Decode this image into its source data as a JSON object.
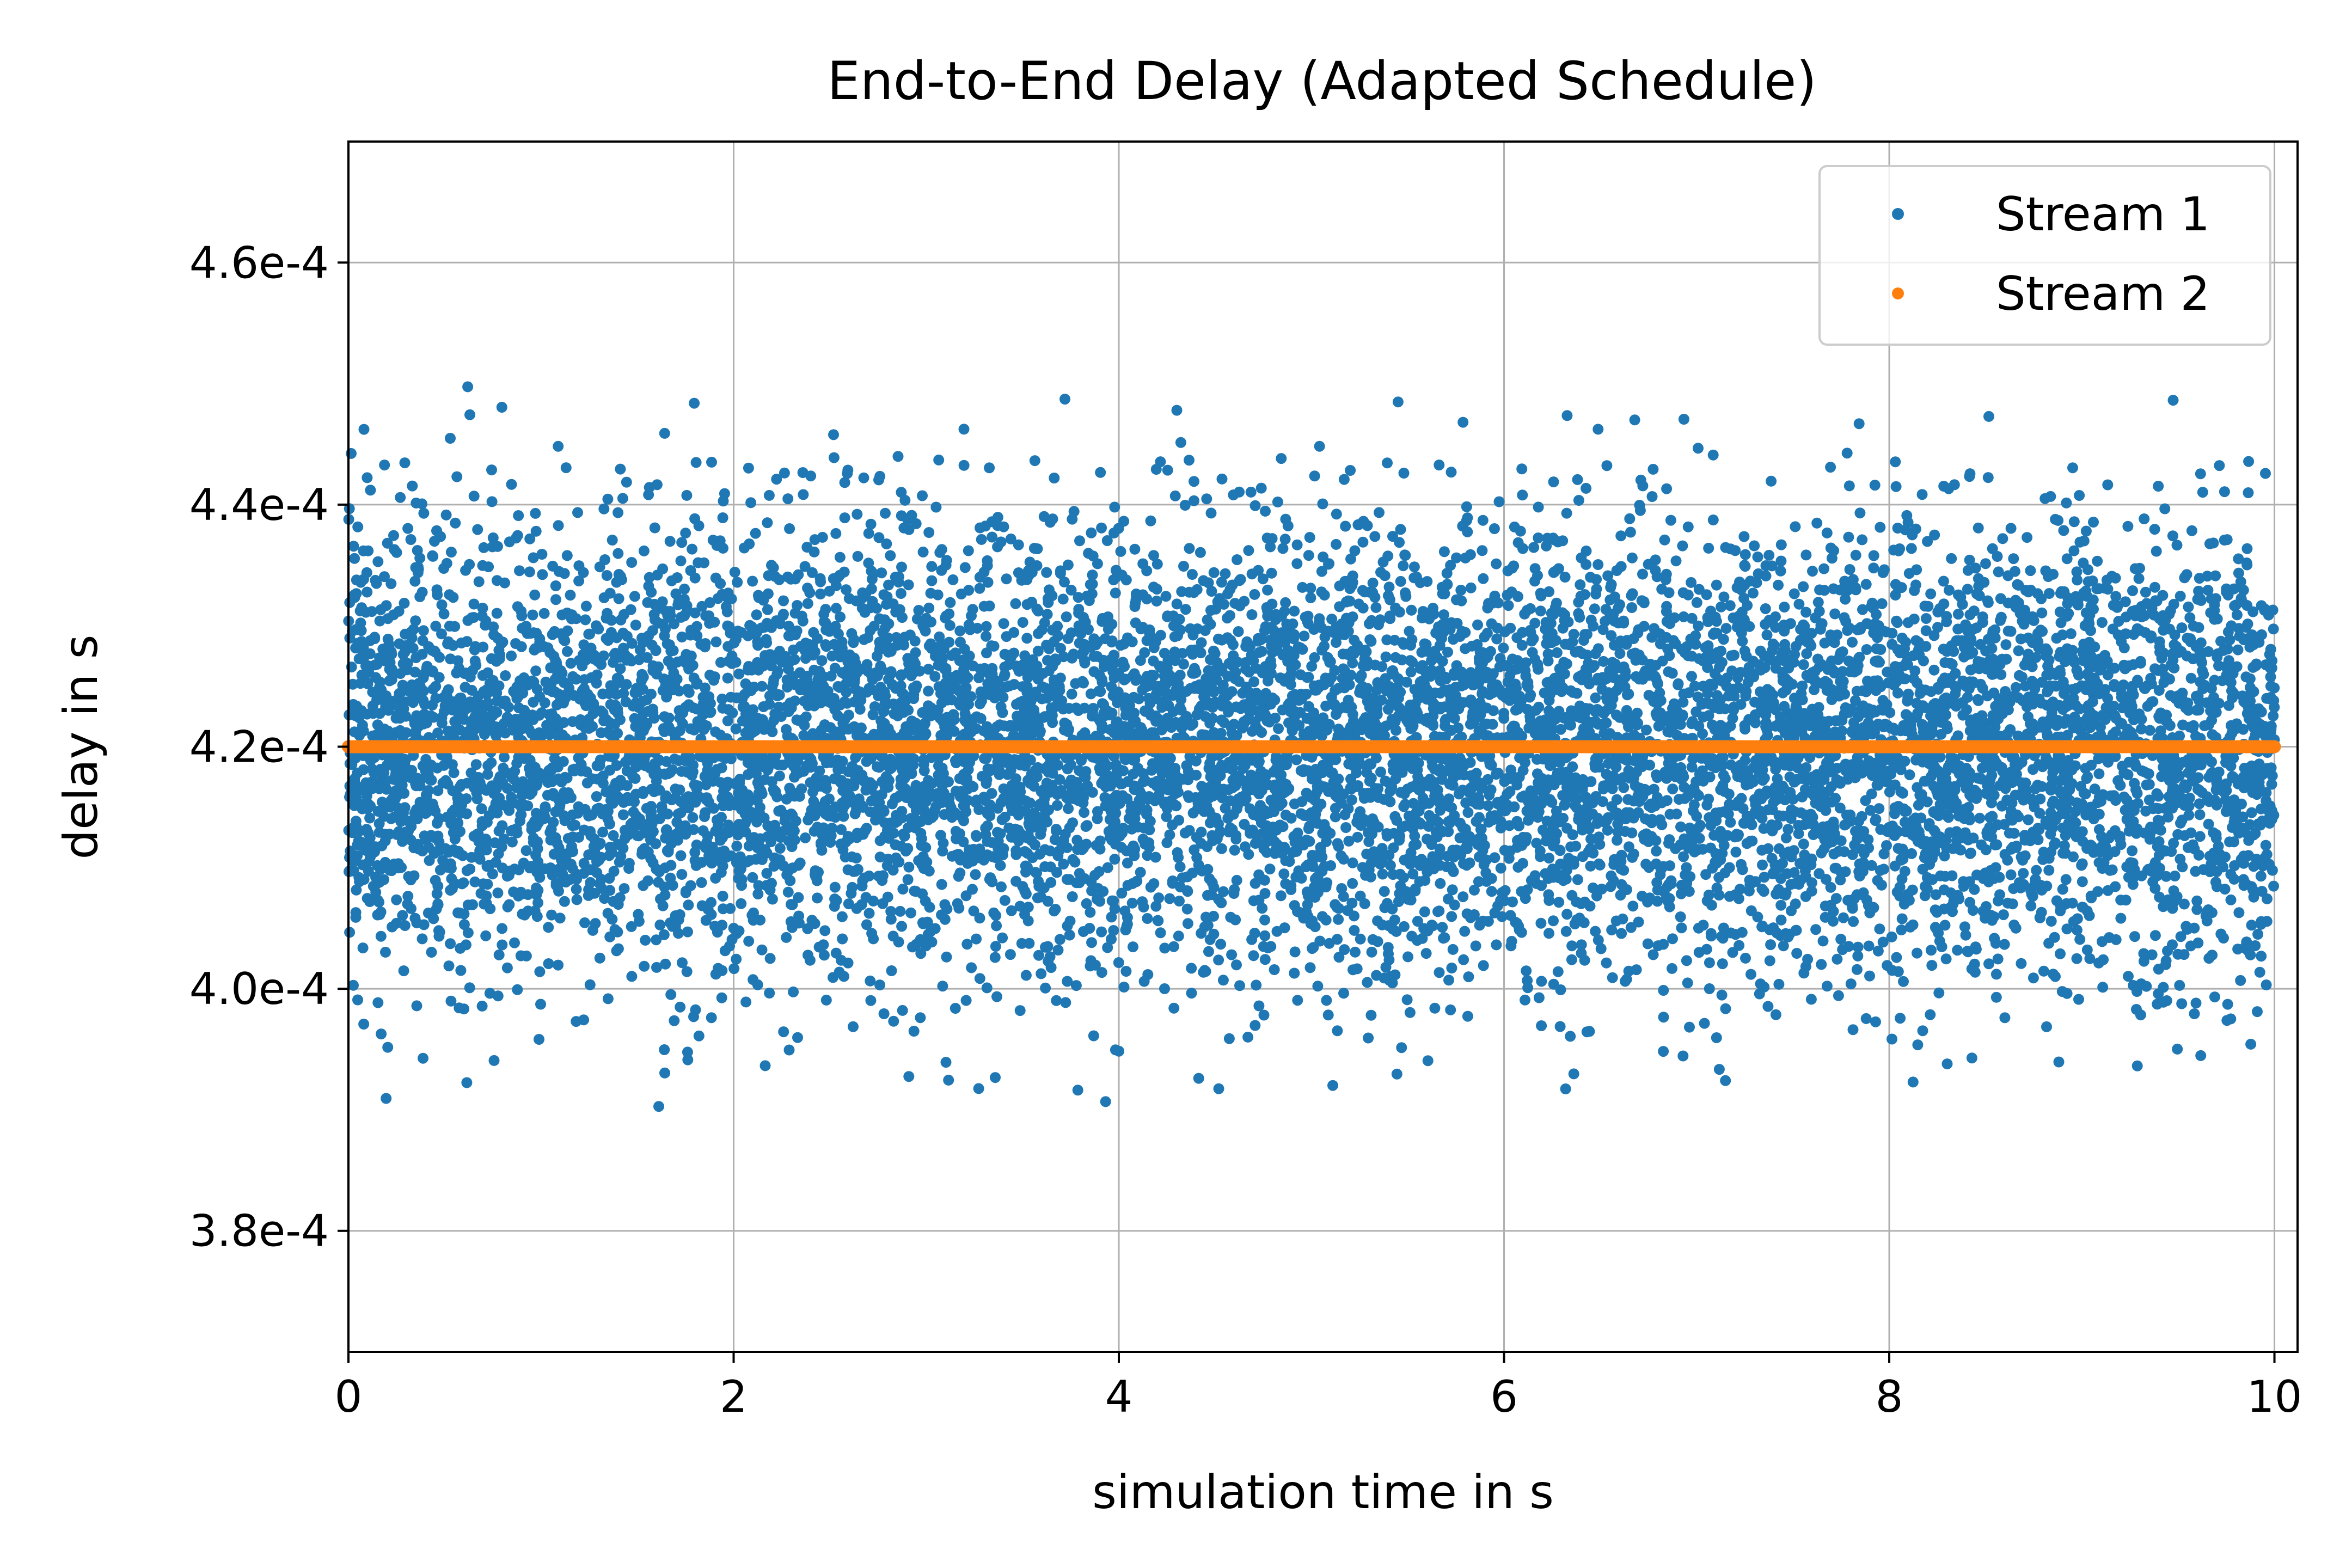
{
  "chart_data": {
    "type": "scatter",
    "title": "End-to-End Delay (Adapted Schedule)",
    "xlabel": "simulation time in s",
    "ylabel": "delay in s",
    "xlim": [
      0,
      10.12
    ],
    "ylim": [
      0.00037,
      0.00047
    ],
    "x_ticks": [
      0,
      2,
      4,
      6,
      8,
      10
    ],
    "x_tick_labels": [
      "0",
      "2",
      "4",
      "6",
      "8",
      "10"
    ],
    "y_ticks": [
      0.00038,
      0.0004,
      0.00042,
      0.00044,
      0.00046
    ],
    "y_tick_labels": [
      "3.8e-4",
      "4.0e-4",
      "4.2e-4",
      "4.4e-4",
      "4.6e-4"
    ],
    "grid": true,
    "legend_position": "top-right",
    "series": [
      {
        "name": "Stream 1",
        "color": "#1f77b4",
        "marker": "dot",
        "x_range": [
          0,
          10
        ],
        "points_per_second": 1000,
        "y_center": 0.00042,
        "y_std": 9e-06,
        "y_min": 0.00039,
        "y_max": 0.00045
      },
      {
        "name": "Stream 2",
        "color": "#ff7f0e",
        "marker": "dot",
        "x_range": [
          0,
          10
        ],
        "y_constant": 0.00042
      }
    ]
  }
}
